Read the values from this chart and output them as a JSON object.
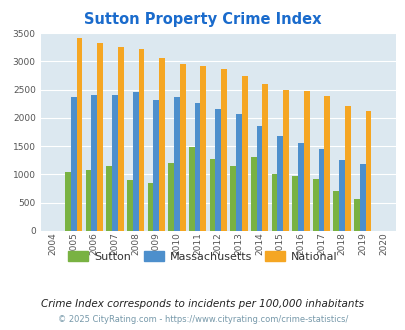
{
  "title": "Sutton Property Crime Index",
  "years": [
    2004,
    2005,
    2006,
    2007,
    2008,
    2009,
    2010,
    2011,
    2012,
    2013,
    2014,
    2015,
    2016,
    2017,
    2018,
    2019,
    2020
  ],
  "sutton": [
    0,
    1050,
    1070,
    1150,
    900,
    850,
    1200,
    1490,
    1270,
    1150,
    1300,
    1010,
    970,
    920,
    700,
    570,
    0
  ],
  "massachusetts": [
    0,
    2370,
    2400,
    2410,
    2450,
    2310,
    2360,
    2260,
    2160,
    2060,
    1850,
    1680,
    1560,
    1450,
    1260,
    1180,
    0
  ],
  "national": [
    0,
    3420,
    3330,
    3260,
    3210,
    3050,
    2960,
    2910,
    2870,
    2740,
    2600,
    2500,
    2470,
    2380,
    2210,
    2120,
    0
  ],
  "sutton_color": "#79b242",
  "massachusetts_color": "#4d8fcc",
  "national_color": "#f5a623",
  "bg_color": "#dce8f0",
  "ylim": [
    0,
    3500
  ],
  "yticks": [
    0,
    500,
    1000,
    1500,
    2000,
    2500,
    3000,
    3500
  ],
  "subtitle": "Crime Index corresponds to incidents per 100,000 inhabitants",
  "footer": "© 2025 CityRating.com - https://www.cityrating.com/crime-statistics/",
  "legend_labels": [
    "Sutton",
    "Massachusetts",
    "National"
  ]
}
